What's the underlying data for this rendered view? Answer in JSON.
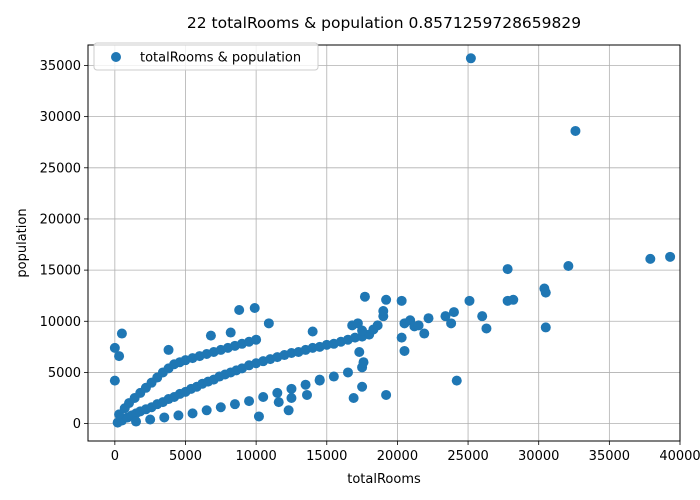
{
  "chart_data": {
    "type": "scatter",
    "title": "22 totalRooms & population 0.8571259728659829",
    "xlabel": "totalRooms",
    "ylabel": "population",
    "xlim": [
      -1900,
      40000
    ],
    "ylim": [
      -1700,
      37000
    ],
    "xticks": [
      0,
      5000,
      10000,
      15000,
      20000,
      25000,
      30000,
      35000,
      40000
    ],
    "yticks": [
      0,
      5000,
      10000,
      15000,
      20000,
      25000,
      30000,
      35000
    ],
    "grid": true,
    "legend": {
      "position": "top-left",
      "entries": [
        "totalRooms & population"
      ]
    },
    "marker_color": "#1f77b4",
    "series": [
      {
        "name": "totalRooms & population",
        "cluster_note": "dense band of points roughly from (0,0) to (18000,9000)",
        "points": [
          [
            200,
            100
          ],
          [
            500,
            300
          ],
          [
            900,
            600
          ],
          [
            1200,
            800
          ],
          [
            1500,
            1000
          ],
          [
            1800,
            1200
          ],
          [
            2200,
            1400
          ],
          [
            2600,
            1600
          ],
          [
            3000,
            1900
          ],
          [
            3400,
            2100
          ],
          [
            3800,
            2400
          ],
          [
            4200,
            2600
          ],
          [
            4600,
            2900
          ],
          [
            5000,
            3100
          ],
          [
            5400,
            3400
          ],
          [
            5800,
            3600
          ],
          [
            6200,
            3900
          ],
          [
            6600,
            4100
          ],
          [
            7000,
            4300
          ],
          [
            7400,
            4600
          ],
          [
            7800,
            4800
          ],
          [
            8200,
            5000
          ],
          [
            8600,
            5200
          ],
          [
            9000,
            5400
          ],
          [
            9500,
            5700
          ],
          [
            10000,
            5900
          ],
          [
            10500,
            6100
          ],
          [
            11000,
            6300
          ],
          [
            11500,
            6500
          ],
          [
            12000,
            6700
          ],
          [
            12500,
            6900
          ],
          [
            13000,
            7000
          ],
          [
            13500,
            7200
          ],
          [
            14000,
            7400
          ],
          [
            14500,
            7500
          ],
          [
            15000,
            7700
          ],
          [
            15500,
            7800
          ],
          [
            16000,
            8000
          ],
          [
            16500,
            8200
          ],
          [
            17000,
            8400
          ],
          [
            17500,
            8500
          ],
          [
            18000,
            8700
          ],
          [
            300,
            900
          ],
          [
            700,
            1500
          ],
          [
            1000,
            2000
          ],
          [
            1400,
            2500
          ],
          [
            1800,
            3000
          ],
          [
            2200,
            3500
          ],
          [
            2600,
            4000
          ],
          [
            3000,
            4500
          ],
          [
            3400,
            5000
          ],
          [
            3800,
            5400
          ],
          [
            4200,
            5800
          ],
          [
            4600,
            6000
          ],
          [
            5000,
            6200
          ],
          [
            5500,
            6400
          ],
          [
            6000,
            6600
          ],
          [
            6500,
            6800
          ],
          [
            7000,
            7000
          ],
          [
            7500,
            7200
          ],
          [
            8000,
            7400
          ],
          [
            8500,
            7600
          ],
          [
            9000,
            7800
          ],
          [
            9500,
            8000
          ],
          [
            10000,
            8200
          ],
          [
            1500,
            200
          ],
          [
            2500,
            400
          ],
          [
            3500,
            600
          ],
          [
            4500,
            800
          ],
          [
            5500,
            1000
          ],
          [
            6500,
            1300
          ],
          [
            7500,
            1600
          ],
          [
            8500,
            1900
          ],
          [
            9500,
            2200
          ],
          [
            10500,
            2600
          ],
          [
            11500,
            3000
          ],
          [
            12500,
            3400
          ],
          [
            13500,
            3800
          ],
          [
            14500,
            4200
          ],
          [
            15500,
            4600
          ],
          [
            16500,
            5000
          ],
          [
            17500,
            5500
          ],
          [
            0,
            7400
          ],
          [
            300,
            6600
          ],
          [
            500,
            8800
          ],
          [
            0,
            4200
          ],
          [
            3800,
            7200
          ],
          [
            6800,
            8600
          ],
          [
            8800,
            11100
          ],
          [
            9900,
            11300
          ],
          [
            8200,
            8900
          ],
          [
            10900,
            9800
          ],
          [
            14000,
            9000
          ],
          [
            12300,
            1300
          ],
          [
            12500,
            2500
          ],
          [
            10200,
            700
          ],
          [
            11600,
            2100
          ],
          [
            13600,
            2800
          ],
          [
            14500,
            4300
          ],
          [
            16900,
            2500
          ],
          [
            17500,
            3600
          ],
          [
            19200,
            2800
          ],
          [
            24200,
            4200
          ],
          [
            16800,
            9600
          ],
          [
            17200,
            9800
          ],
          [
            17500,
            9100
          ],
          [
            18300,
            9200
          ],
          [
            18600,
            9600
          ],
          [
            19000,
            10500
          ],
          [
            19000,
            11000
          ],
          [
            19200,
            12100
          ],
          [
            17700,
            12400
          ],
          [
            20300,
            8400
          ],
          [
            20500,
            9800
          ],
          [
            20300,
            12000
          ],
          [
            20900,
            10100
          ],
          [
            21200,
            9500
          ],
          [
            21500,
            9600
          ],
          [
            21900,
            8800
          ],
          [
            22200,
            10300
          ],
          [
            23400,
            10500
          ],
          [
            23800,
            9800
          ],
          [
            24000,
            10900
          ],
          [
            25100,
            12000
          ],
          [
            26000,
            10500
          ],
          [
            26300,
            9300
          ],
          [
            27800,
            12000
          ],
          [
            27800,
            15100
          ],
          [
            28200,
            12100
          ],
          [
            30400,
            13200
          ],
          [
            30500,
            12800
          ],
          [
            30500,
            9400
          ],
          [
            32100,
            15400
          ],
          [
            20500,
            7100
          ],
          [
            17300,
            7000
          ],
          [
            17600,
            6000
          ],
          [
            25200,
            35700
          ],
          [
            32600,
            28600
          ],
          [
            37900,
            16100
          ],
          [
            39300,
            16300
          ]
        ]
      }
    ]
  }
}
